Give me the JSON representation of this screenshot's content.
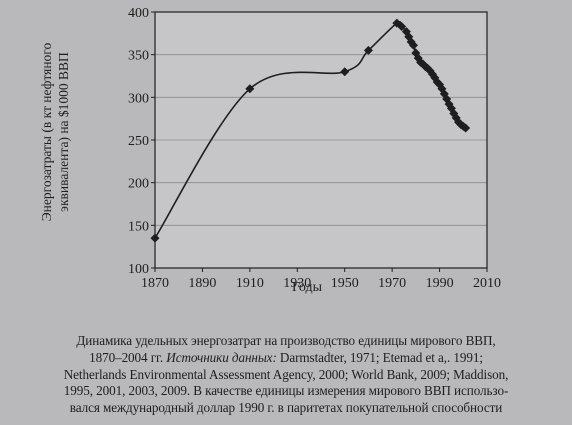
{
  "chart_data": {
    "type": "line",
    "xlabel": "Годы",
    "ylabel_line1": "Энергозатраты (в кт нефтяного",
    "ylabel_line2": "эквивалента) на $1000 ВВП",
    "xlim": [
      1870,
      2010
    ],
    "ylim": [
      100,
      400
    ],
    "x_ticks": [
      1870,
      1890,
      1910,
      1930,
      1950,
      1970,
      1990,
      2010
    ],
    "y_ticks": [
      100,
      150,
      200,
      250,
      300,
      350,
      400
    ],
    "grid": "horizontal",
    "series": [
      {
        "marker": "diamond",
        "points": [
          [
            1870,
            135
          ],
          [
            1910,
            310
          ],
          [
            1950,
            330
          ],
          [
            1960,
            355
          ],
          [
            1972,
            387
          ],
          [
            1974,
            383
          ],
          [
            1976,
            377
          ],
          [
            1977,
            371
          ],
          [
            1978,
            365
          ],
          [
            1979,
            361
          ],
          [
            1980,
            352
          ],
          [
            1981,
            346
          ],
          [
            1982,
            341
          ],
          [
            1983,
            339
          ],
          [
            1984,
            336
          ],
          [
            1985,
            334
          ],
          [
            1986,
            331
          ],
          [
            1987,
            327
          ],
          [
            1988,
            323
          ],
          [
            1989,
            318
          ],
          [
            1990,
            315
          ],
          [
            1991,
            310
          ],
          [
            1992,
            304
          ],
          [
            1993,
            298
          ],
          [
            1994,
            292
          ],
          [
            1995,
            287
          ],
          [
            1996,
            281
          ],
          [
            1997,
            276
          ],
          [
            1998,
            271
          ],
          [
            1999,
            268
          ],
          [
            2000,
            266
          ],
          [
            2001,
            264
          ]
        ]
      }
    ]
  },
  "caption": {
    "line1": "Динамика удельных энергозатрат на производство единицы мирового ВВП,",
    "line2_a": "1870–2004 гг. ",
    "line2_b": "Источники данных:",
    "line2_c": " Darmstadter, 1971; Etemad et a,. 1991;",
    "line3": "Netherlands Environmental Assessment Agency, 2000; World Bank, 2009; Maddison,",
    "line4": "1995, 2001, 2003, 2009. В качестве единицы измерения мирового ВВП использо-",
    "line5": "вался международный доллар 1990 г. в паритетах покупательной способности"
  },
  "colors": {
    "plot_bg": "#c6c6c8",
    "ink": "#1e1e1e",
    "grid": "#8c8c8e"
  }
}
